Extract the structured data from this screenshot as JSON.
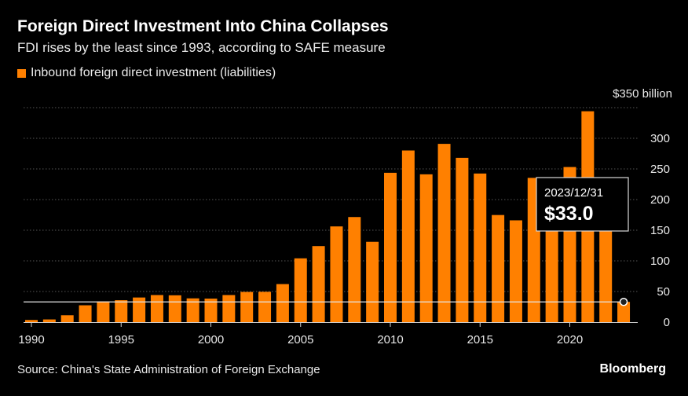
{
  "header": {
    "title": "Foreign Direct Investment Into China Collapses",
    "subtitle": "FDI rises by the least since 1993, according to SAFE measure"
  },
  "legend": {
    "label": "Inbound foreign direct investment (liabilities)"
  },
  "footer": {
    "source": "Source: China's State Administration of Foreign Exchange",
    "brand": "Bloomberg"
  },
  "tooltip": {
    "date": "2023/12/31",
    "value_label": "$33.0"
  },
  "colors": {
    "bar": "#ff8000",
    "background": "#000000",
    "grid": "#555555"
  },
  "chart_data": {
    "type": "bar",
    "title": "Foreign Direct Investment Into China Collapses",
    "subtitle": "FDI rises by the least since 1993, according to SAFE measure",
    "categories": [
      1990,
      1991,
      1992,
      1993,
      1994,
      1995,
      1996,
      1997,
      1998,
      1999,
      2000,
      2001,
      2002,
      2003,
      2004,
      2005,
      2006,
      2007,
      2008,
      2009,
      2010,
      2011,
      2012,
      2013,
      2014,
      2015,
      2016,
      2017,
      2018,
      2019,
      2020,
      2021,
      2022,
      2023
    ],
    "series": [
      {
        "name": "Inbound foreign direct investment (liabilities)",
        "values": [
          3.5,
          4.4,
          11.2,
          27.5,
          33.8,
          35.8,
          40.2,
          44.2,
          43.8,
          38.8,
          38.4,
          44.2,
          49.3,
          49.5,
          62.1,
          104.1,
          124.1,
          156.2,
          171.5,
          131.1,
          243.7,
          280.1,
          241.2,
          290.9,
          268.1,
          242.5,
          174.8,
          166.1,
          235.4,
          187.2,
          253.1,
          344.1,
          180.2,
          33.0
        ]
      }
    ],
    "xlabel": "",
    "ylabel": "",
    "ylim": [
      0,
      350
    ],
    "y_ticks": [
      0,
      50,
      100,
      150,
      200,
      250,
      300
    ],
    "y_top_label": "$350 billion",
    "x_tick_labels": [
      1990,
      1995,
      2000,
      2005,
      2010,
      2015,
      2020
    ],
    "grid": true,
    "highlight": {
      "x": 2023,
      "y": 33.0
    }
  }
}
